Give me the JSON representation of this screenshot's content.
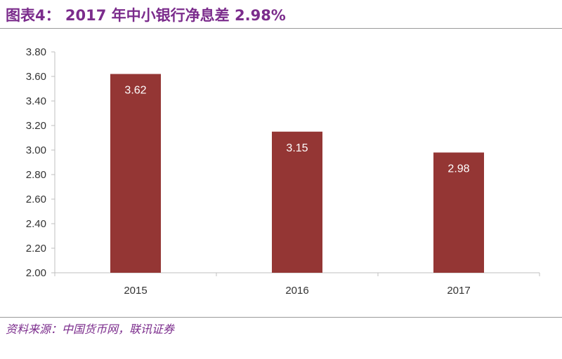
{
  "title": "图表4： 2017 年中小银行净息差 2.98%",
  "source": "资料来源：中国货币网，联讯证券",
  "colors": {
    "title": "#7b2c8c",
    "bar": "#943634",
    "axis": "#bfbfbf",
    "label": "#ffffff"
  },
  "chart_data": {
    "type": "bar",
    "categories": [
      "2015",
      "2016",
      "2017"
    ],
    "values": [
      3.62,
      3.15,
      2.98
    ],
    "data_labels": [
      "3.62",
      "3.15",
      "2.98"
    ],
    "ylim": [
      2.0,
      3.8
    ],
    "y_ticks": [
      "2.00",
      "2.20",
      "2.40",
      "2.60",
      "2.80",
      "3.00",
      "3.20",
      "3.40",
      "3.60",
      "3.80"
    ],
    "xlabel": "",
    "ylabel": "",
    "grid": false,
    "legend": "none"
  }
}
